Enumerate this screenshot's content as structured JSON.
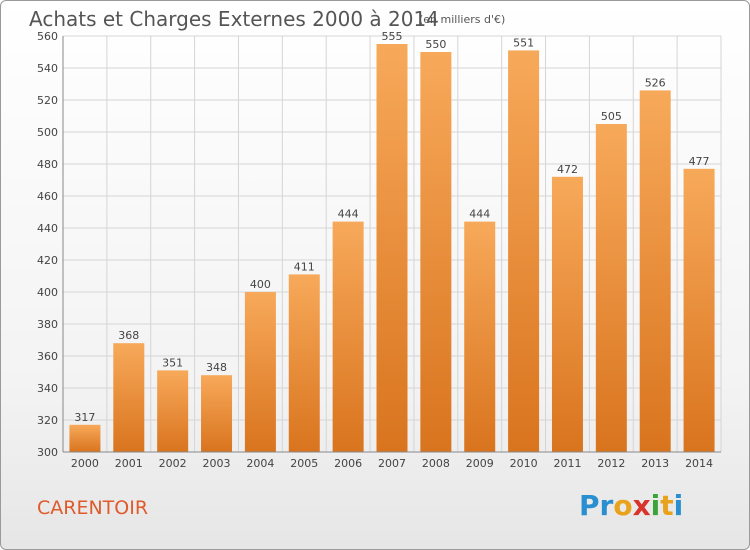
{
  "header": {
    "title": "Achats et Charges Externes 2000 à 2014",
    "subtitle": "(en milliers d'€)"
  },
  "footer": {
    "commune": "CARENTOIR",
    "logo_text": "Proxiti",
    "logo_parts": [
      "Pr",
      "o",
      "x",
      "i",
      "t",
      "i"
    ]
  },
  "colors": {
    "bar_top": "#f7a95a",
    "bar_bottom": "#d9741e",
    "grid": "#d5d5d5",
    "axis_text": "#444444",
    "title_text": "#555555",
    "commune_text": "#e05a2b"
  },
  "chart_data": {
    "type": "bar",
    "title": "Achats et Charges Externes 2000 à 2014",
    "subtitle": "(en milliers d'€)",
    "categories": [
      "2000",
      "2001",
      "2002",
      "2003",
      "2004",
      "2005",
      "2006",
      "2007",
      "2008",
      "2009",
      "2010",
      "2011",
      "2012",
      "2013",
      "2014"
    ],
    "values": [
      317,
      368,
      351,
      348,
      400,
      411,
      444,
      555,
      550,
      444,
      551,
      472,
      505,
      526,
      477
    ],
    "ylim": [
      300,
      560
    ],
    "yticks": [
      300,
      320,
      340,
      360,
      380,
      400,
      420,
      440,
      460,
      480,
      500,
      520,
      540,
      560
    ],
    "grid": true,
    "legend": "none"
  }
}
